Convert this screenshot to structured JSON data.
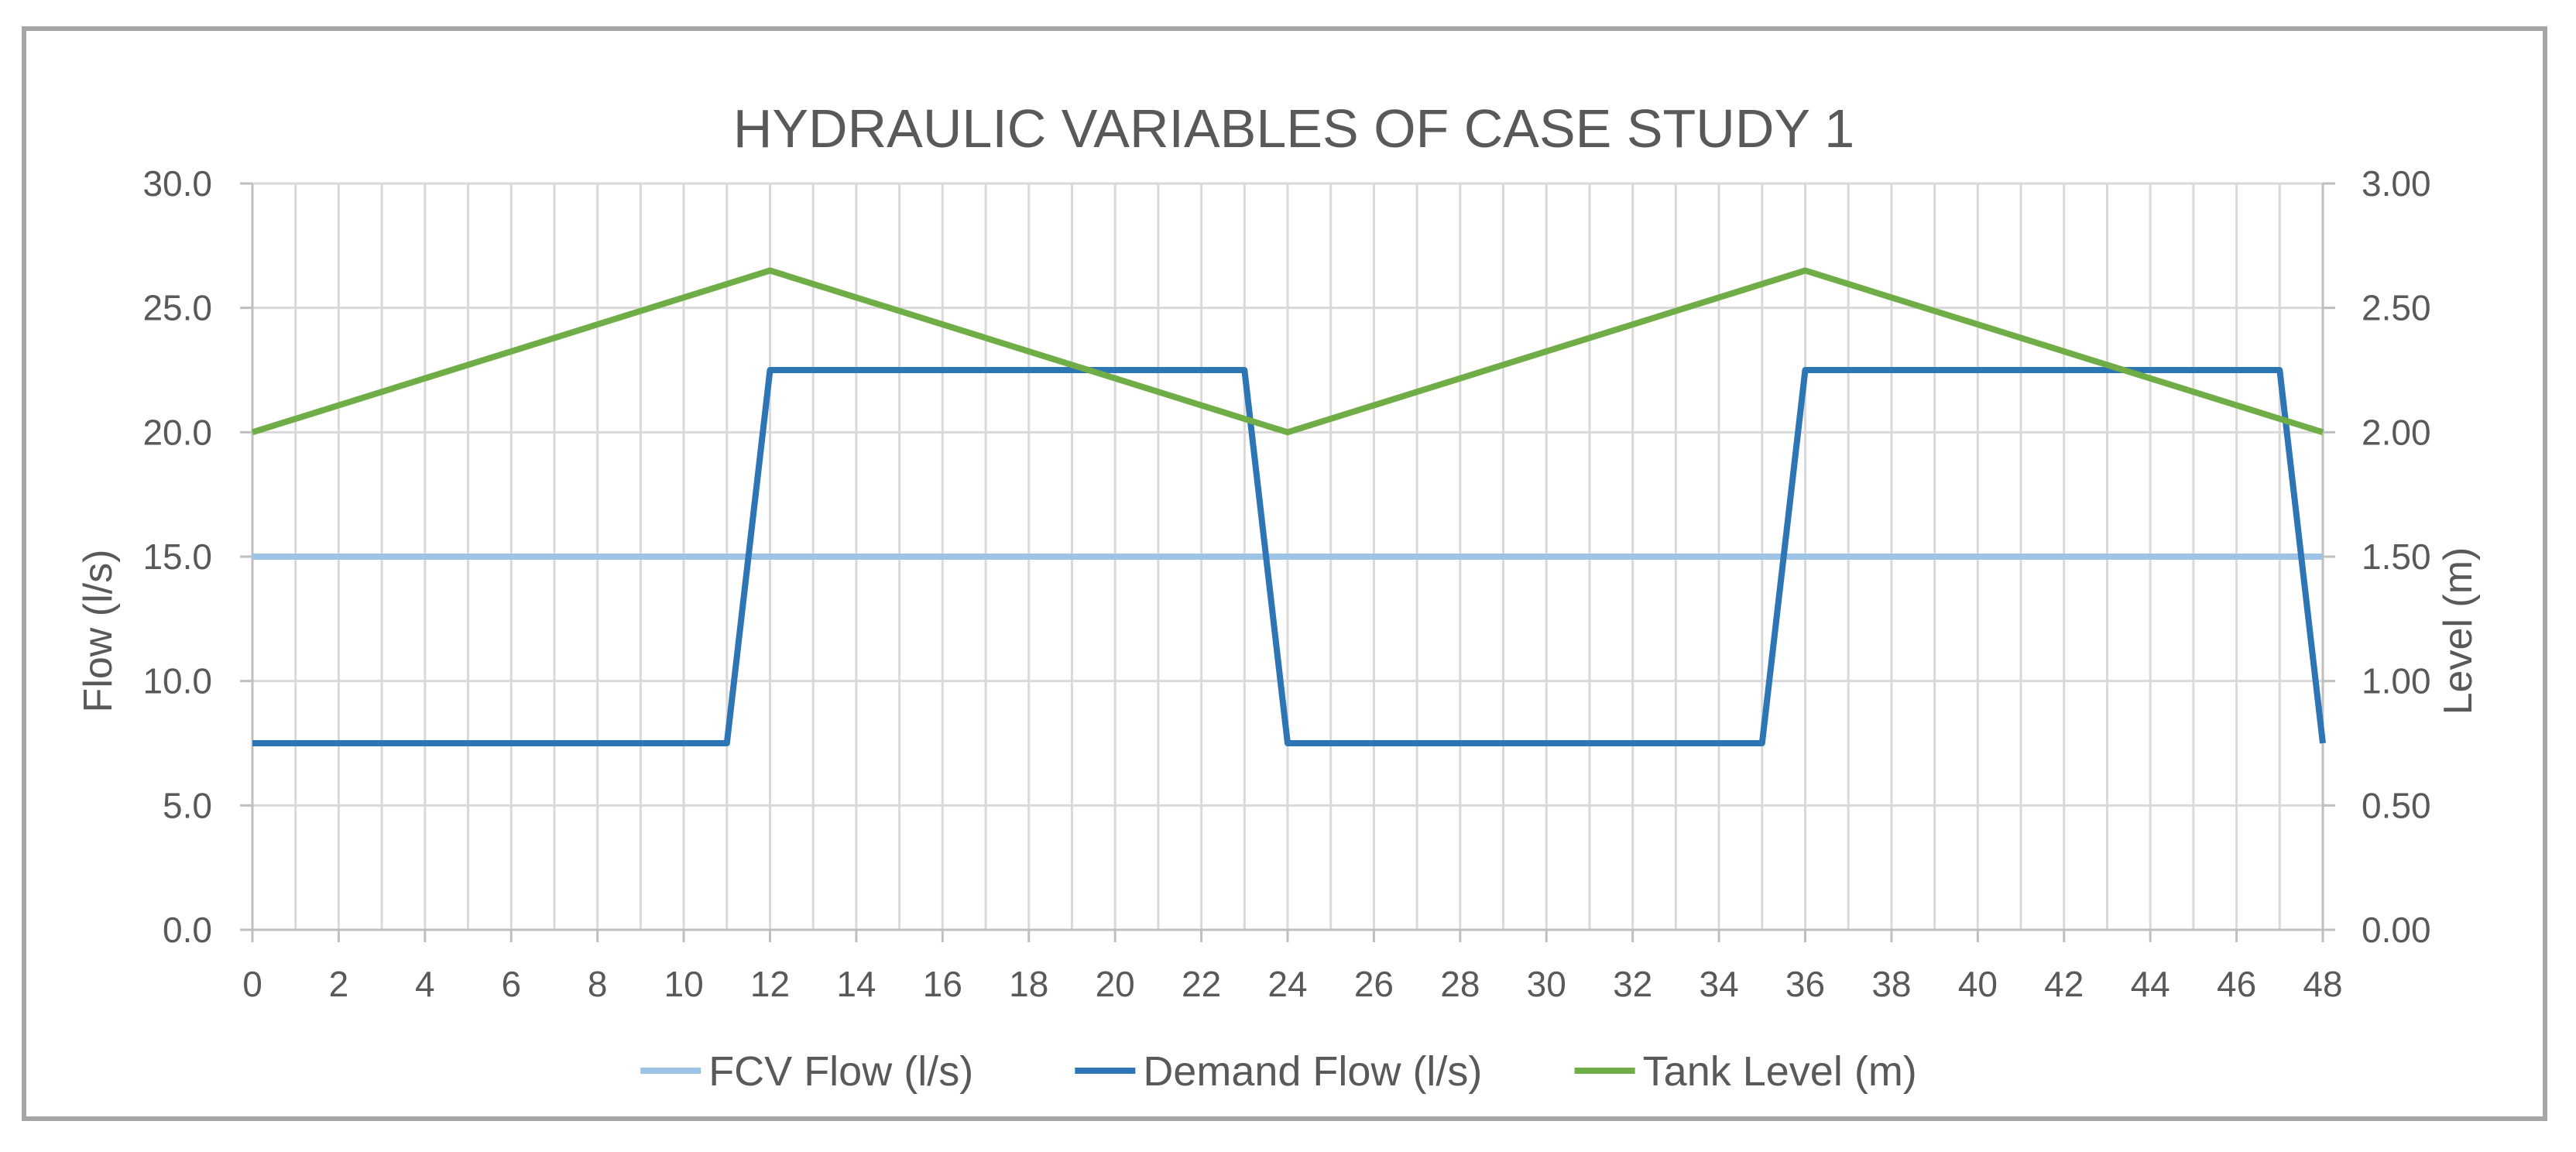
{
  "chart_data": {
    "type": "line",
    "title": "HYDRAULIC VARIABLES OF CASE STUDY 1",
    "xlabel": "",
    "ylabel": "Flow (l/s)",
    "y2label": "Level (m)",
    "xlim": [
      0,
      48
    ],
    "ylim": [
      0,
      30
    ],
    "y2lim": [
      0,
      3
    ],
    "x_ticks": [
      "0",
      "2",
      "4",
      "6",
      "8",
      "10",
      "12",
      "14",
      "16",
      "18",
      "20",
      "22",
      "24",
      "26",
      "28",
      "30",
      "32",
      "34",
      "36",
      "38",
      "40",
      "42",
      "44",
      "46",
      "48"
    ],
    "y_ticks": [
      "0.0",
      "5.0",
      "10.0",
      "15.0",
      "20.0",
      "25.0",
      "30.0"
    ],
    "y2_ticks": [
      "0.00",
      "0.50",
      "1.00",
      "1.50",
      "2.00",
      "2.50",
      "3.00"
    ],
    "grid": true,
    "legend_position": "bottom",
    "series": [
      {
        "name": "FCV Flow (l/s)",
        "axis": "left",
        "color": "#9dc3e6",
        "x": [
          0,
          48
        ],
        "values": [
          15,
          15
        ]
      },
      {
        "name": "Demand Flow (l/s)",
        "axis": "left",
        "color": "#2e75b6",
        "x": [
          0,
          11,
          12,
          23,
          24,
          35,
          36,
          47,
          48
        ],
        "values": [
          7.5,
          7.5,
          22.5,
          22.5,
          7.5,
          7.5,
          22.5,
          22.5,
          7.5
        ]
      },
      {
        "name": "Tank Level (m)",
        "axis": "right",
        "color": "#70ad47",
        "x": [
          0,
          12,
          24,
          36,
          48
        ],
        "values": [
          2.0,
          2.65,
          2.0,
          2.65,
          2.0
        ]
      }
    ]
  }
}
